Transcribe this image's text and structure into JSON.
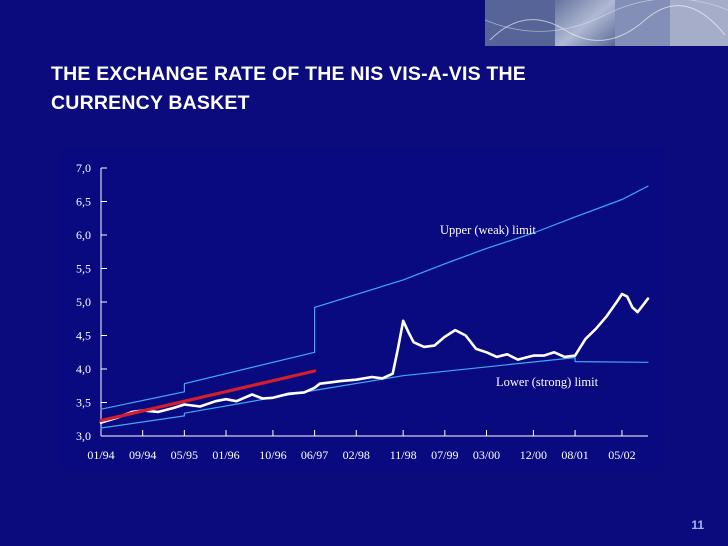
{
  "slide": {
    "title_line1": "THE EXCHANGE RATE OF THE NIS VIS-A-VIS THE",
    "title_line2": "CURRENCY BASKET",
    "page_number": "11"
  },
  "colors": {
    "background": "#0b0b7e",
    "plot_background": "#0a0a80",
    "axis": "#ffffff",
    "series_rate": "#ffffff",
    "series_limits": "#3fa9f5",
    "series_trend": "#d21f2a"
  },
  "chart_data": {
    "type": "line",
    "title": "",
    "xlabel": "",
    "ylabel": "",
    "ylim": [
      3.0,
      7.0
    ],
    "y_ticks": [
      "3,0",
      "3,5",
      "4,0",
      "4,5",
      "5,0",
      "5,5",
      "6,0",
      "6,5",
      "7,0"
    ],
    "x_ticks": [
      "01/94",
      "09/94",
      "05/95",
      "01/96",
      "10/96",
      "06/97",
      "02/98",
      "11/98",
      "07/99",
      "03/00",
      "12/00",
      "08/01",
      "05/02"
    ],
    "grid": false,
    "annotations": {
      "upper": "Upper (weak) limit",
      "lower": "Lower (strong) limit"
    },
    "series": [
      {
        "key": "upper",
        "x": [
          "01/94",
          "05/95",
          "05/95",
          "06/97",
          "06/97",
          "11/98",
          "07/99",
          "03/00",
          "12/00",
          "08/01",
          "05/02",
          "10/02"
        ],
        "values": [
          3.4,
          3.66,
          3.78,
          4.25,
          4.92,
          5.33,
          5.57,
          5.8,
          6.03,
          6.27,
          6.53,
          6.73
        ]
      },
      {
        "key": "lower",
        "x": [
          "01/94",
          "05/95",
          "05/95",
          "06/97",
          "11/98",
          "08/01",
          "08/01",
          "10/02"
        ],
        "values": [
          3.12,
          3.3,
          3.34,
          3.68,
          3.9,
          4.17,
          4.11,
          4.1
        ]
      },
      {
        "key": "rate",
        "x": [
          "01/94",
          "04/94",
          "07/94",
          "09/94",
          "12/94",
          "03/95",
          "05/95",
          "08/95",
          "11/95",
          "01/96",
          "03/96",
          "06/96",
          "08/96",
          "10/96",
          "01/97",
          "04/97",
          "06/97",
          "07/97",
          "09/97",
          "11/97",
          "02/98",
          "05/98",
          "07/98",
          "09/98",
          "10/98",
          "11/98",
          "12/98",
          "01/99",
          "03/99",
          "05/99",
          "07/99",
          "09/99",
          "11/99",
          "01/00",
          "03/00",
          "05/00",
          "07/00",
          "09/00",
          "12/00",
          "02/01",
          "04/01",
          "06/01",
          "08/01",
          "10/01",
          "12/01",
          "02/02",
          "04/02",
          "05/02",
          "06/02",
          "07/02",
          "08/02",
          "09/02",
          "10/02"
        ],
        "values": [
          3.2,
          3.27,
          3.36,
          3.38,
          3.36,
          3.42,
          3.47,
          3.44,
          3.52,
          3.55,
          3.52,
          3.62,
          3.56,
          3.57,
          3.63,
          3.65,
          3.72,
          3.78,
          3.8,
          3.82,
          3.84,
          3.88,
          3.86,
          3.93,
          4.3,
          4.72,
          4.55,
          4.4,
          4.33,
          4.35,
          4.48,
          4.58,
          4.5,
          4.3,
          4.25,
          4.18,
          4.22,
          4.14,
          4.2,
          4.2,
          4.25,
          4.18,
          4.2,
          4.45,
          4.6,
          4.78,
          5.0,
          5.12,
          5.08,
          4.92,
          4.85,
          4.95,
          5.05
        ]
      },
      {
        "key": "trend",
        "x": [
          "01/94",
          "06/97"
        ],
        "values": [
          3.23,
          3.97
        ]
      }
    ]
  }
}
